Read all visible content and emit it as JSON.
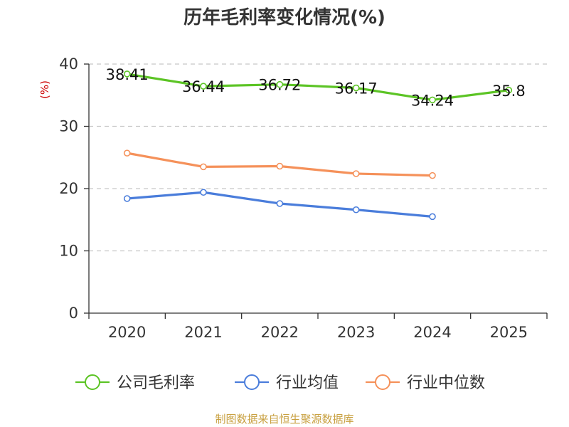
{
  "chart_data": {
    "type": "line",
    "title": "历年毛利率变化情况(%)",
    "ylabel": "(%)",
    "categories": [
      "2020",
      "2021",
      "2022",
      "2023",
      "2024",
      "2025"
    ],
    "ylim": [
      0,
      40
    ],
    "yticks": [
      0,
      10,
      20,
      30,
      40
    ],
    "grid": true,
    "legend_position": "bottom",
    "series": [
      {
        "name": "公司毛利率",
        "color": "#5cc425",
        "values": [
          38.41,
          36.44,
          36.72,
          36.17,
          34.24,
          35.8
        ],
        "labels": [
          "38.41",
          "36.44",
          "36.72",
          "36.17",
          "34.24",
          "35.8"
        ]
      },
      {
        "name": "行业均值",
        "color": "#4a7ddb",
        "values": [
          18.4,
          19.4,
          17.6,
          16.6,
          15.5,
          null
        ]
      },
      {
        "name": "行业中位数",
        "color": "#f5915a",
        "values": [
          25.7,
          23.5,
          23.6,
          22.4,
          22.1,
          null
        ]
      }
    ],
    "source": "制图数据来自恒生聚源数据库"
  }
}
